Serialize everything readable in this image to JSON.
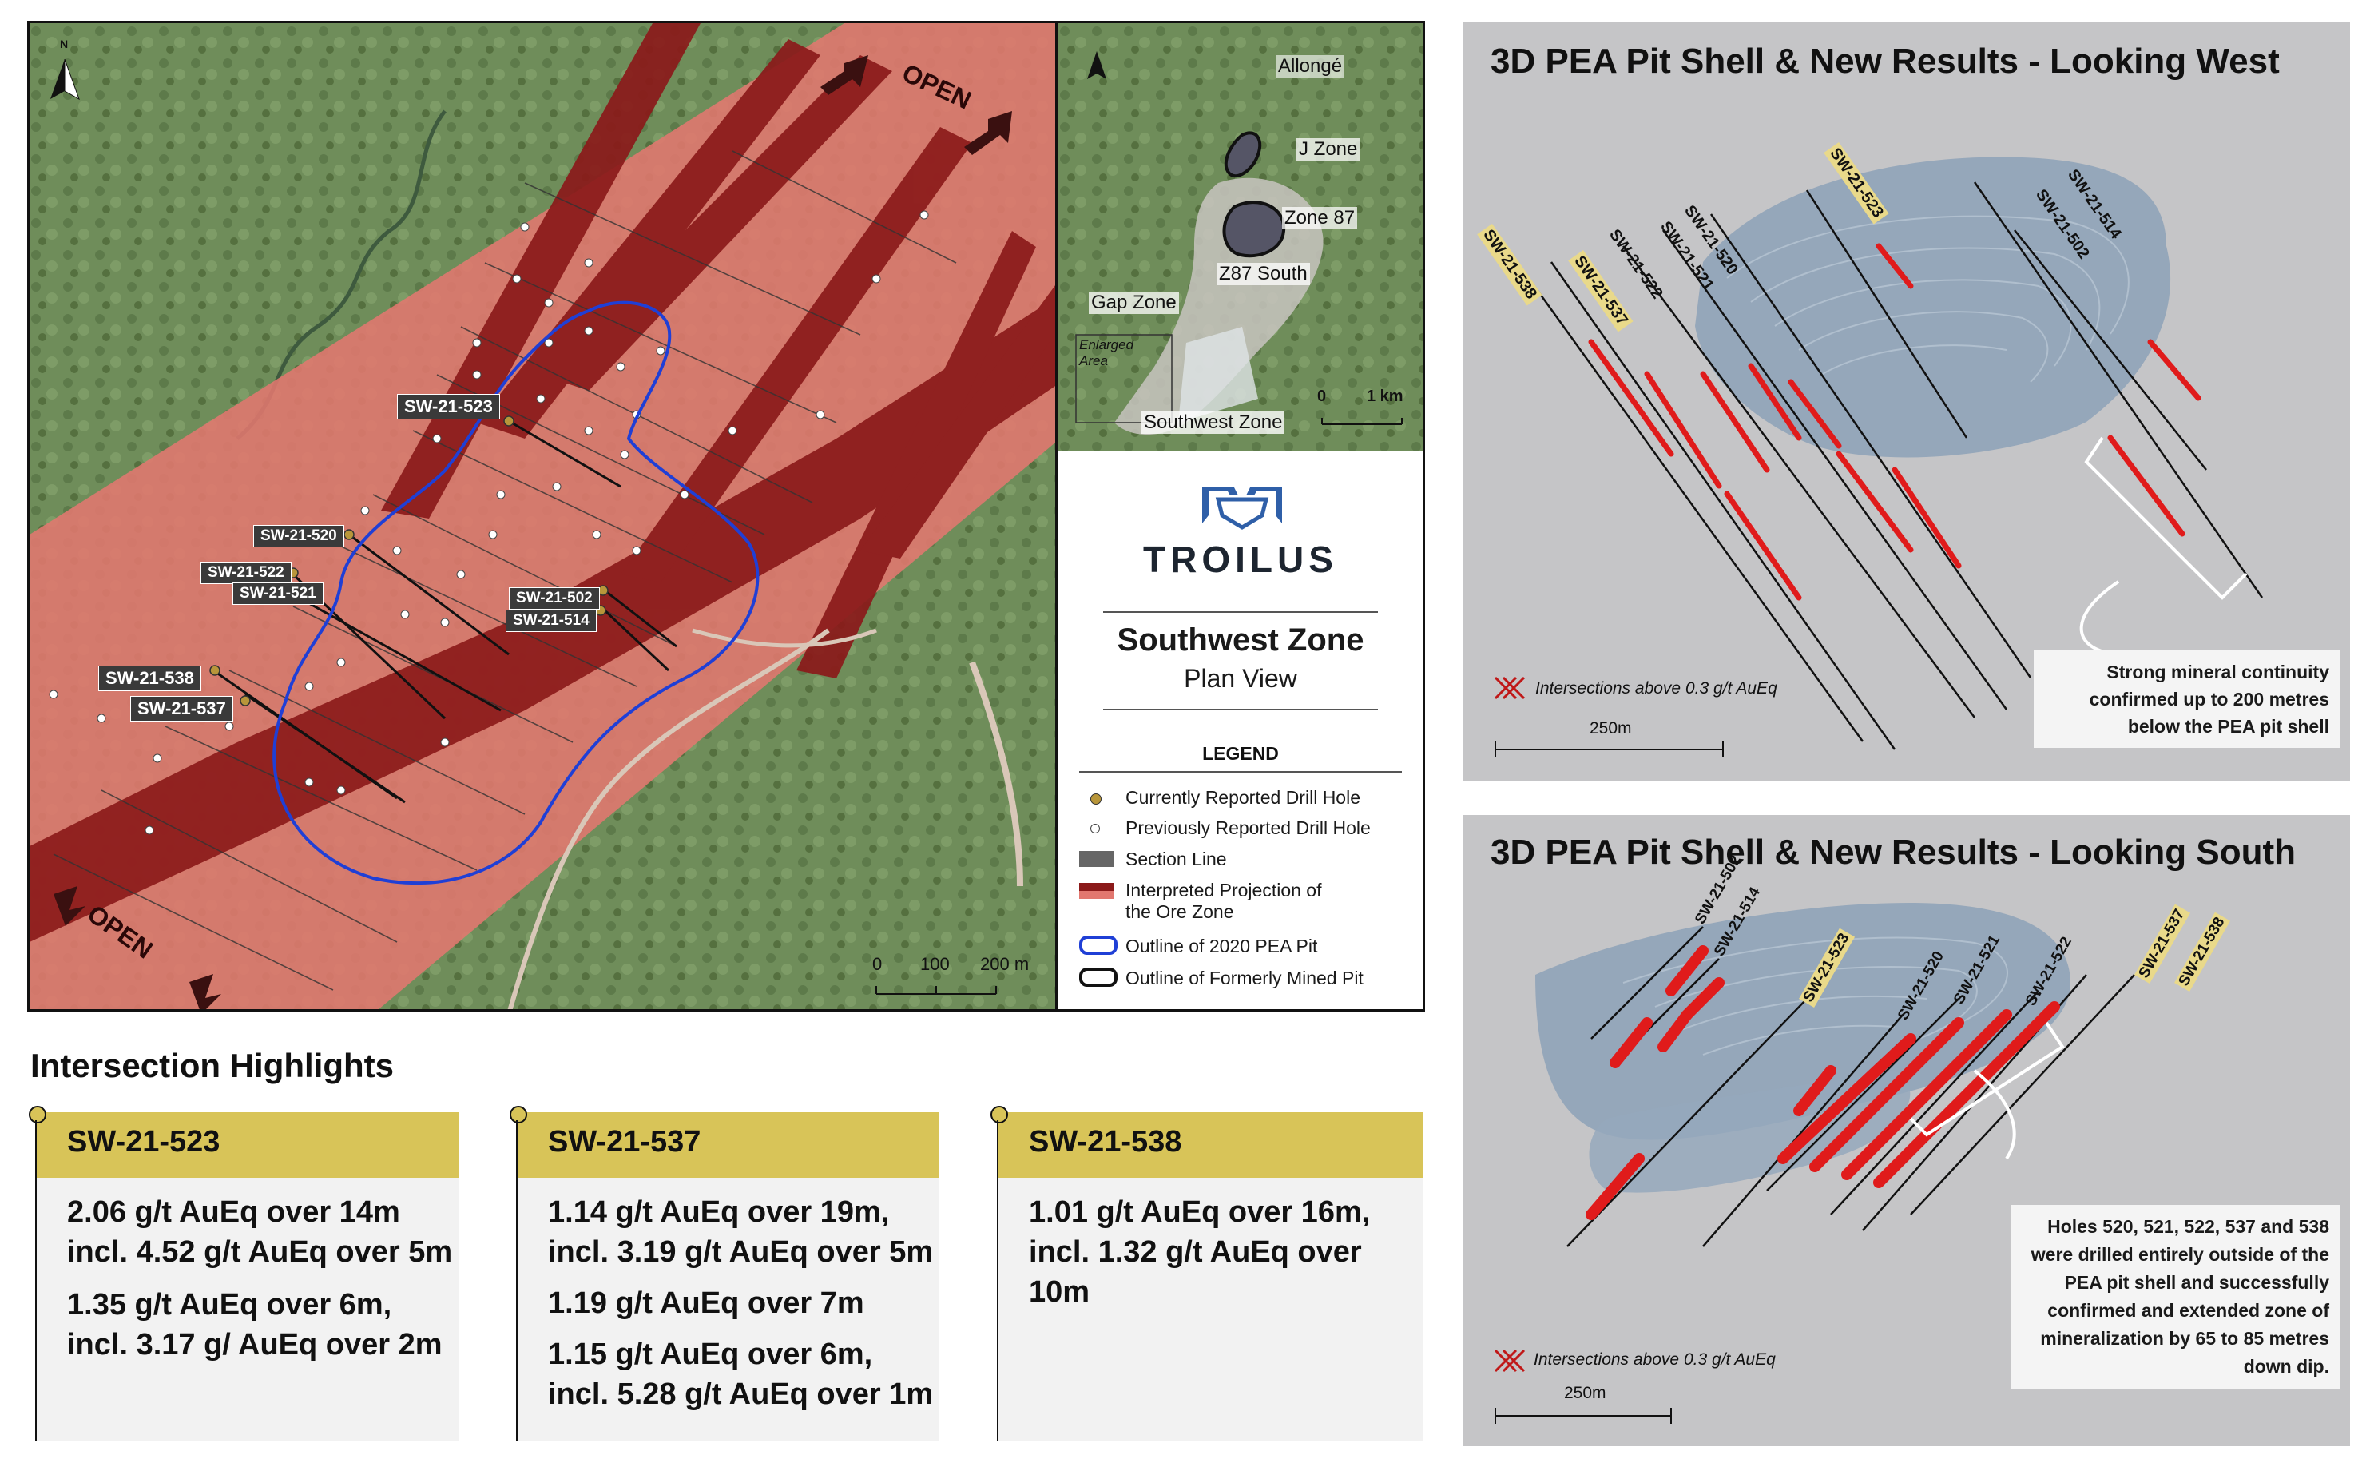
{
  "plan_map": {
    "open_label": "OPEN",
    "scale_labels": [
      "0",
      "100",
      "200 m"
    ],
    "drill_labels": {
      "sw523": "SW-21-523",
      "sw520": "SW-21-520",
      "sw522": "SW-21-522",
      "sw521": "SW-21-521",
      "sw502": "SW-21-502",
      "sw514": "SW-21-514",
      "sw538": "SW-21-538",
      "sw537": "SW-21-537"
    },
    "north_label": "N"
  },
  "inset_map": {
    "labels": {
      "allonge": "Allongé",
      "jzone": "J Zone",
      "zone87": "Zone 87",
      "z87south": "Z87 South",
      "gapzone": "Gap Zone",
      "enlarged": "Enlarged Area",
      "southwest": "Southwest Zone"
    },
    "scale_labels": [
      "0",
      "1 km"
    ]
  },
  "logo_text": "TROILUS",
  "zone_title": "Southwest Zone",
  "zone_subtitle": "Plan View",
  "legend": {
    "title": "LEGEND",
    "items": [
      "Currently Reported Drill Hole",
      "Previously Reported Drill Hole",
      "Section Line",
      "Interpreted Projection of the Ore Zone",
      "Outline of 2020 PEA Pit",
      "Outline of Formerly Mined Pit"
    ]
  },
  "highlights": {
    "title": "Intersection Highlights",
    "cards": [
      {
        "hole": "SW-21-523",
        "lines": [
          "2.06 g/t AuEq over 14m",
          "incl. 4.52 g/t AuEq over 5m",
          "1.35 g/t AuEq over 6m,",
          "incl. 3.17 g/ AuEq over 2m"
        ]
      },
      {
        "hole": "SW-21-537",
        "lines": [
          "1.14 g/t AuEq over 19m,",
          "incl. 3.19 g/t AuEq over 5m",
          "1.19 g/t AuEq over 7m",
          "1.15 g/t AuEq over 6m,",
          "incl. 5.28 g/t AuEq over 1m"
        ]
      },
      {
        "hole": "SW-21-538",
        "lines": [
          "1.01 g/t AuEq over 16m,",
          "incl. 1.32 g/t AuEq over 10m"
        ]
      }
    ]
  },
  "view_west": {
    "title": "3D PEA Pit Shell & New Results - Looking West",
    "holes": [
      "SW-21-523",
      "SW-21-514",
      "SW-21-502",
      "SW-21-520",
      "SW-21-521",
      "SW-21-522",
      "SW-21-537",
      "SW-21-538"
    ],
    "legend_label": "Intersections above 0.3 g/t AuEq",
    "scale_label": "250m",
    "callout": "Strong mineral continuity confirmed up to 200 metres below the PEA pit shell"
  },
  "view_south": {
    "title": "3D PEA Pit Shell & New Results - Looking South",
    "holes": [
      "SW-21-502",
      "SW-21-514",
      "SW-21-523",
      "SW-21-520",
      "SW-21-521",
      "SW-21-522",
      "SW-21-537",
      "SW-21-538"
    ],
    "legend_label": "Intersections above 0.3 g/t AuEq",
    "scale_label": "250m",
    "callout": "Holes 520, 521, 522, 537 and 538 were drilled entirely outside of the PEA pit shell and successfully confirmed and extended zone of mineralization by 65 to 85 metres down dip."
  },
  "colors": {
    "ore_zone": "#8b1a1a",
    "halo": "#e2776f",
    "pea_pit": "#1f3fd6",
    "gold_header": "#d8c458",
    "intersection": "#e01b1b"
  }
}
